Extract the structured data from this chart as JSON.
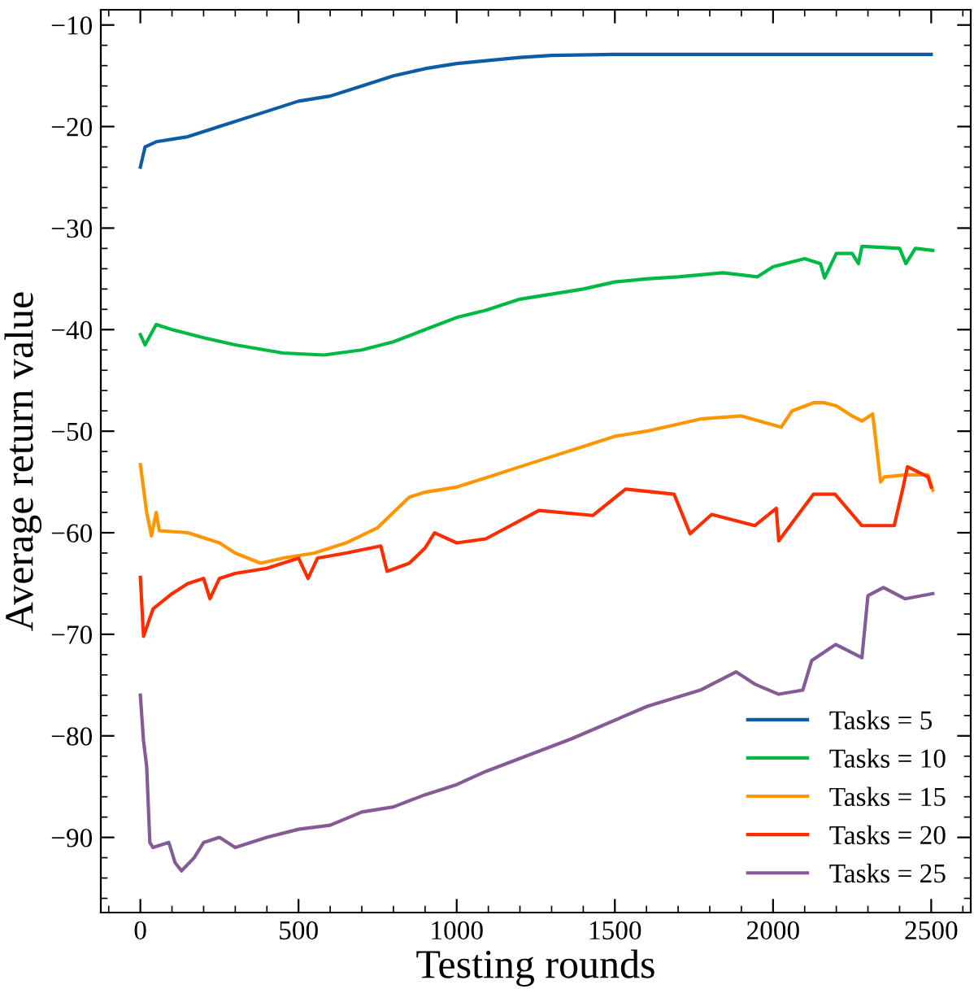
{
  "chart_data": {
    "type": "line",
    "xlabel": "Testing rounds",
    "ylabel": "Average return value",
    "xlim": [
      -125,
      2625
    ],
    "ylim": [
      -97.4,
      -8.5
    ],
    "xticks": [
      0,
      500,
      1000,
      1500,
      2000,
      2500
    ],
    "yticks": [
      {
        "value": -90,
        "label": "−90"
      },
      {
        "value": -80,
        "label": "−80"
      },
      {
        "value": -70,
        "label": "−70"
      },
      {
        "value": -60,
        "label": "−60"
      },
      {
        "value": -50,
        "label": "−50"
      },
      {
        "value": -40,
        "label": "−40"
      },
      {
        "value": -30,
        "label": "−30"
      },
      {
        "value": -20,
        "label": "−20"
      },
      {
        "value": -10,
        "label": "−10"
      }
    ],
    "grid": false,
    "legend": "bottom right",
    "marker": "none",
    "line_style": "solid",
    "series": [
      {
        "name": "Tasks = 5",
        "color": "#0c5da5",
        "x": [
          0,
          15,
          50,
          150,
          250,
          400,
          500,
          600,
          700,
          800,
          900,
          1000,
          1100,
          1200,
          1300,
          1500,
          2000,
          2500
        ],
        "values": [
          -24,
          -22,
          -21.5,
          -21,
          -20,
          -18.5,
          -17.5,
          -17,
          -16,
          -15,
          -14.3,
          -13.8,
          -13.5,
          -13.2,
          -13,
          -12.9,
          -12.9,
          -12.9
        ]
      },
      {
        "name": "Tasks = 10",
        "color": "#00b945",
        "x": [
          0,
          15,
          50,
          100,
          200,
          300,
          450,
          580,
          700,
          800,
          900,
          1000,
          1092,
          1200,
          1300,
          1400,
          1500,
          1600,
          1700,
          1842,
          1950,
          2000,
          2100,
          2150,
          2163,
          2200,
          2250,
          2270,
          2281,
          2400,
          2420,
          2450,
          2505
        ],
        "values": [
          -40.5,
          -41.5,
          -39.5,
          -40,
          -40.8,
          -41.5,
          -42.3,
          -42.5,
          -42,
          -41.2,
          -40,
          -38.8,
          -38.1,
          -37,
          -36.5,
          -36,
          -35.3,
          -35,
          -34.8,
          -34.4,
          -34.8,
          -33.8,
          -33,
          -33.5,
          -34.9,
          -32.5,
          -32.5,
          -33.5,
          -31.8,
          -32,
          -33.5,
          -32,
          -32.2
        ]
      },
      {
        "name": "Tasks = 15",
        "color": "#ff9500",
        "x": [
          0,
          20,
          35,
          50,
          60,
          150,
          250,
          300,
          380,
          450,
          550,
          650,
          750,
          800,
          850,
          900,
          1000,
          1092,
          1200,
          1300,
          1400,
          1500,
          1600,
          1770,
          1900,
          2026,
          2060,
          2128,
          2162,
          2200,
          2250,
          2281,
          2315,
          2340,
          2352,
          2420,
          2490,
          2505
        ],
        "values": [
          -53.3,
          -58,
          -60.3,
          -58,
          -59.8,
          -60,
          -61,
          -62,
          -63,
          -62.5,
          -62,
          -61,
          -59.5,
          -58,
          -56.5,
          -56,
          -55.5,
          -54.6,
          -53.5,
          -52.5,
          -51.5,
          -50.5,
          -50,
          -48.8,
          -48.5,
          -49.6,
          -48,
          -47.2,
          -47.2,
          -47.5,
          -48.5,
          -49,
          -48.3,
          -55,
          -54.5,
          -54.3,
          -54.3,
          -55.8
        ]
      },
      {
        "name": "Tasks = 20",
        "color": "#ff2c00",
        "x": [
          0,
          10,
          40,
          100,
          150,
          200,
          220,
          250,
          300,
          400,
          500,
          530,
          560,
          650,
          760,
          780,
          850,
          900,
          930,
          1000,
          1092,
          1260,
          1430,
          1534,
          1687,
          1738,
          1806,
          1942,
          2010,
          2018,
          2128,
          2196,
          2281,
          2383,
          2410,
          2425,
          2490,
          2500
        ],
        "values": [
          -64.4,
          -70.2,
          -67.5,
          -66,
          -65,
          -64.5,
          -66.5,
          -64.5,
          -64,
          -63.5,
          -62.5,
          -64.5,
          -62.5,
          -62,
          -61.3,
          -63.8,
          -63,
          -61.5,
          -60,
          -61,
          -60.6,
          -57.8,
          -58.3,
          -55.7,
          -56.2,
          -60.1,
          -58.2,
          -59.3,
          -57.6,
          -60.8,
          -56.2,
          -56.2,
          -59.3,
          -59.3,
          -55.7,
          -53.5,
          -54.5,
          -55.5
        ]
      },
      {
        "name": "Tasks = 25",
        "color": "#845b97",
        "x": [
          0,
          10,
          20,
          30,
          40,
          90,
          110,
          130,
          170,
          200,
          250,
          300,
          400,
          500,
          600,
          700,
          800,
          900,
          1000,
          1092,
          1362,
          1602,
          1770,
          1883,
          1942,
          2018,
          2094,
          2122,
          2198,
          2281,
          2300,
          2349,
          2417,
          2505
        ],
        "values": [
          -76,
          -80.5,
          -83,
          -90.5,
          -91,
          -90.5,
          -92.5,
          -93.3,
          -92,
          -90.5,
          -90,
          -91,
          -90,
          -89.2,
          -88.8,
          -87.5,
          -87,
          -85.8,
          -84.8,
          -83.5,
          -80.3,
          -77.1,
          -75.5,
          -73.7,
          -74.9,
          -75.9,
          -75.5,
          -72.6,
          -71,
          -72.3,
          -66.2,
          -65.4,
          -66.5,
          -66
        ]
      }
    ]
  }
}
